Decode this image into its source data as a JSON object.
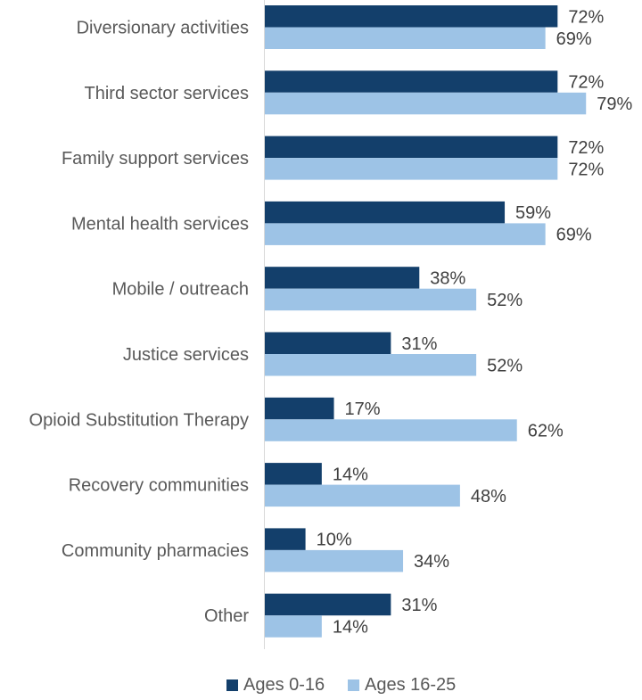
{
  "chart_data": {
    "type": "bar",
    "orientation": "horizontal",
    "categories": [
      "Diversionary activities",
      "Third sector services",
      "Family support services",
      "Mental health services",
      "Mobile / outreach",
      "Justice services",
      "Opioid Substitution Therapy",
      "Recovery communities",
      "Community pharmacies",
      "Other"
    ],
    "series": [
      {
        "name": "Ages 0-16",
        "color": "#133f6b",
        "values": [
          72,
          72,
          72,
          59,
          38,
          31,
          17,
          14,
          10,
          31
        ]
      },
      {
        "name": "Ages 16-25",
        "color": "#9dc3e6",
        "values": [
          69,
          79,
          72,
          69,
          52,
          52,
          62,
          48,
          34,
          14
        ]
      }
    ],
    "value_suffix": "%",
    "xlim": [
      0,
      100
    ],
    "grid": false,
    "legend_position": "bottom"
  }
}
